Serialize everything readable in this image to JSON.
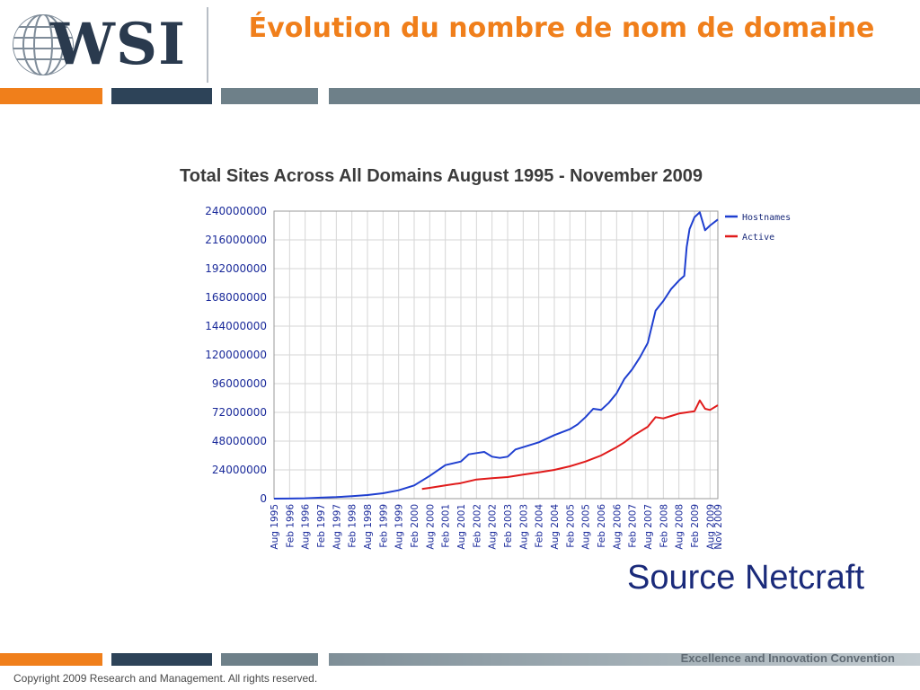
{
  "header": {
    "logo_text": "WSI",
    "title": "Évolution du nombre de nom de domaine"
  },
  "colors": {
    "orange": "#f07f1b",
    "navy": "#2d4358",
    "slate": "#6e8089",
    "title": "#f07f1b",
    "hostnames": "#1f3fd0",
    "active": "#e01b1b"
  },
  "chart_data": {
    "type": "line",
    "title": "Total Sites Across All Domains August 1995 - November 2009",
    "xlabel": "",
    "ylabel": "",
    "ylim": [
      0,
      240000000
    ],
    "y_ticks": [
      0,
      24000000,
      48000000,
      72000000,
      96000000,
      120000000,
      144000000,
      168000000,
      192000000,
      216000000,
      240000000
    ],
    "x_range": [
      1995.58,
      2009.83
    ],
    "x_tick_labels": [
      "Aug 1995",
      "Feb 1996",
      "Aug 1996",
      "Feb 1997",
      "Aug 1997",
      "Feb 1998",
      "Aug 1998",
      "Feb 1999",
      "Aug 1999",
      "Feb 2000",
      "Aug 2000",
      "Feb 2001",
      "Aug 2001",
      "Feb 2002",
      "Aug 2002",
      "Feb 2003",
      "Aug 2003",
      "Feb 2004",
      "Aug 2004",
      "Feb 2005",
      "Aug 2005",
      "Feb 2006",
      "Aug 2006",
      "Feb 2007",
      "Aug 2007",
      "Feb 2008",
      "Aug 2008",
      "Feb 2009",
      "Aug 2009",
      "Nov 2009"
    ],
    "x_tick_values": [
      1995.58,
      1996.08,
      1996.58,
      1997.08,
      1997.58,
      1998.08,
      1998.58,
      1999.08,
      1999.58,
      2000.08,
      2000.58,
      2001.08,
      2001.58,
      2002.08,
      2002.58,
      2003.08,
      2003.58,
      2004.08,
      2004.58,
      2005.08,
      2005.58,
      2006.08,
      2006.58,
      2007.08,
      2007.58,
      2008.08,
      2008.58,
      2009.08,
      2009.58,
      2009.83
    ],
    "grid": true,
    "legend_position": "top-right",
    "series": [
      {
        "name": "Hostnames",
        "color": "#1f3fd0",
        "points": [
          [
            1995.58,
            19000
          ],
          [
            1996.08,
            100000
          ],
          [
            1996.58,
            300000
          ],
          [
            1997.08,
            800000
          ],
          [
            1997.58,
            1300000
          ],
          [
            1998.08,
            2000000
          ],
          [
            1998.58,
            3000000
          ],
          [
            1999.08,
            4500000
          ],
          [
            1999.58,
            7000000
          ],
          [
            2000.08,
            11000000
          ],
          [
            2000.58,
            19000000
          ],
          [
            2001.08,
            28000000
          ],
          [
            2001.58,
            31000000
          ],
          [
            2001.83,
            37000000
          ],
          [
            2002.08,
            38000000
          ],
          [
            2002.33,
            39000000
          ],
          [
            2002.58,
            35000000
          ],
          [
            2002.83,
            34000000
          ],
          [
            2003.08,
            35000000
          ],
          [
            2003.33,
            41000000
          ],
          [
            2003.58,
            43000000
          ],
          [
            2004.08,
            47000000
          ],
          [
            2004.58,
            53000000
          ],
          [
            2005.08,
            58000000
          ],
          [
            2005.33,
            62000000
          ],
          [
            2005.58,
            68000000
          ],
          [
            2005.83,
            75000000
          ],
          [
            2006.08,
            74000000
          ],
          [
            2006.33,
            80000000
          ],
          [
            2006.58,
            88000000
          ],
          [
            2006.83,
            100000000
          ],
          [
            2007.08,
            108000000
          ],
          [
            2007.33,
            118000000
          ],
          [
            2007.58,
            130000000
          ],
          [
            2007.83,
            157000000
          ],
          [
            2008.08,
            165000000
          ],
          [
            2008.33,
            175000000
          ],
          [
            2008.58,
            182000000
          ],
          [
            2008.75,
            186000000
          ],
          [
            2008.83,
            210000000
          ],
          [
            2008.92,
            225000000
          ],
          [
            2009.08,
            235000000
          ],
          [
            2009.25,
            239000000
          ],
          [
            2009.42,
            224000000
          ],
          [
            2009.58,
            228000000
          ],
          [
            2009.83,
            233000000
          ]
        ]
      },
      {
        "name": "Active",
        "color": "#e01b1b",
        "points": [
          [
            2000.33,
            8000000
          ],
          [
            2000.58,
            9000000
          ],
          [
            2001.08,
            11000000
          ],
          [
            2001.58,
            13000000
          ],
          [
            2002.08,
            16000000
          ],
          [
            2002.58,
            17000000
          ],
          [
            2003.08,
            18000000
          ],
          [
            2003.58,
            20000000
          ],
          [
            2004.08,
            22000000
          ],
          [
            2004.58,
            24000000
          ],
          [
            2005.08,
            27000000
          ],
          [
            2005.58,
            31000000
          ],
          [
            2006.08,
            36000000
          ],
          [
            2006.58,
            43000000
          ],
          [
            2006.83,
            47000000
          ],
          [
            2007.08,
            52000000
          ],
          [
            2007.58,
            60000000
          ],
          [
            2007.83,
            68000000
          ],
          [
            2008.08,
            67000000
          ],
          [
            2008.33,
            69000000
          ],
          [
            2008.58,
            71000000
          ],
          [
            2008.83,
            72000000
          ],
          [
            2009.08,
            73000000
          ],
          [
            2009.25,
            82000000
          ],
          [
            2009.42,
            75000000
          ],
          [
            2009.58,
            74000000
          ],
          [
            2009.83,
            78000000
          ]
        ]
      }
    ]
  },
  "source_text": "Source Netcraft",
  "footer": {
    "tagline": "Excellence and Innovation Convention",
    "copyright": "Copyright 2009 Research and Management. All rights reserved."
  }
}
